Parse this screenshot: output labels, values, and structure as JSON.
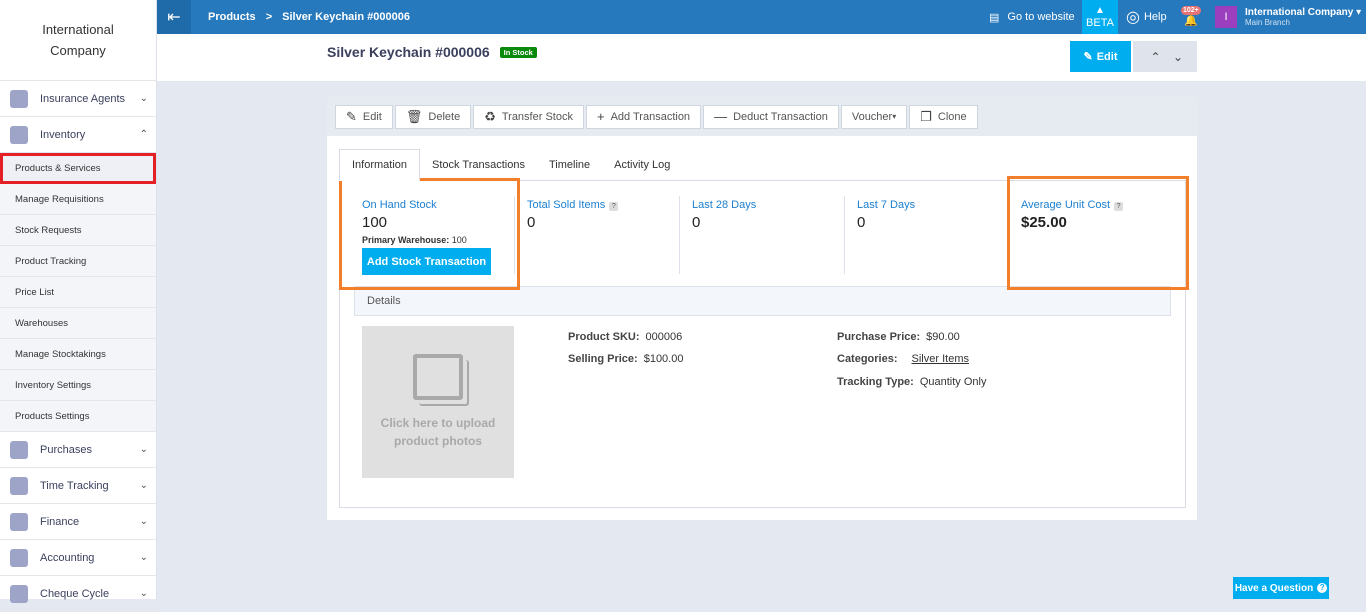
{
  "sidebar": {
    "company": "International Company",
    "sections": [
      {
        "label": "Insurance Agents",
        "expanded": false
      },
      {
        "label": "Inventory",
        "expanded": true
      }
    ],
    "inventory_items": [
      "Products & Services",
      "Manage Requisitions",
      "Stock Requests",
      "Product Tracking",
      "Price List",
      "Warehouses",
      "Manage Stocktakings",
      "Inventory Settings",
      "Products Settings"
    ],
    "more_sections": [
      "Purchases",
      "Time Tracking",
      "Finance",
      "Accounting",
      "Cheque Cycle"
    ]
  },
  "topbar": {
    "breadcrumb": [
      "Products",
      "Silver Keychain #000006"
    ],
    "go_to_website": "Go to website",
    "beta": "BETA",
    "help": "Help",
    "notifications": "102+",
    "avatar": "I",
    "company": "International Company",
    "branch": "Main Branch"
  },
  "header": {
    "title": "Silver Keychain #000006",
    "status": "In Stock",
    "edit": "Edit"
  },
  "toolbar": {
    "edit": "Edit",
    "delete": "Delete",
    "transfer": "Transfer Stock",
    "add": "Add Transaction",
    "deduct": "Deduct Transaction",
    "voucher": "Voucher",
    "clone": "Clone"
  },
  "tabs": [
    "Information",
    "Stock Transactions",
    "Timeline",
    "Activity Log"
  ],
  "stats": {
    "on_hand_label": "On Hand Stock",
    "on_hand": "100",
    "primary_label": "Primary Warehouse:",
    "primary": "100",
    "add_stock": "Add Stock Transaction",
    "sold_label": "Total Sold Items",
    "sold": "0",
    "d28_label": "Last 28 Days",
    "d28": "0",
    "d7_label": "Last 7 Days",
    "d7": "0",
    "avg_label": "Average Unit Cost",
    "avg": "$25.00"
  },
  "details": {
    "heading": "Details",
    "upload": "Click here to upload product photos",
    "sku_label": "Product SKU:",
    "sku": "000006",
    "selling_label": "Selling Price:",
    "selling": "$100.00",
    "purchase_label": "Purchase Price:",
    "purchase": "$90.00",
    "categories_label": "Categories:",
    "categories": "Silver Items",
    "tracking_label": "Tracking Type:",
    "tracking": "Quantity Only"
  },
  "help_button": "Have a Question",
  "colors": {
    "topbar": "#2779bd",
    "accent": "#00adef",
    "in_stock": "#0a8a0a",
    "highlight_red": "#e42026",
    "highlight_orange": "#f47f2a"
  }
}
